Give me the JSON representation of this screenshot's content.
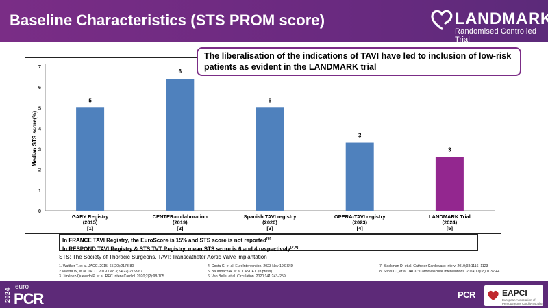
{
  "header": {
    "title": "Baseline Characteristics (STS PROM score)",
    "logo_name": "LANDMARK",
    "logo_subtitle": "Randomised Controlled Trial"
  },
  "callout": {
    "text": "The liberalisation of the indications of TAVI have led to inclusion of low-risk patients as evident in the LANDMARK trial"
  },
  "chart_data": {
    "type": "bar",
    "categories": [
      [
        "GARY Registry",
        "(2015)",
        "[1]"
      ],
      [
        "CENTER-collaboration",
        "(2019)",
        "[2]"
      ],
      [
        "Spanish TAVI registry",
        "(2020)",
        "[3]"
      ],
      [
        "OPERA-TAVI registry",
        "(2023)",
        "[4]"
      ],
      [
        "LANDMARK Trial",
        "(2024)",
        "[5]"
      ]
    ],
    "values": [
      5.0,
      6.4,
      5.0,
      3.3,
      2.6
    ],
    "data_labels": [
      "5",
      "6",
      "5",
      "3",
      "3"
    ],
    "bar_colors": [
      "#4f81bd",
      "#4f81bd",
      "#4f81bd",
      "#4f81bd",
      "#93278f"
    ],
    "ylabel": "Median STS score(%)",
    "ylim": [
      0,
      7
    ],
    "yticks": [
      "0",
      "1",
      "2",
      "3",
      "4",
      "5",
      "6",
      "7"
    ],
    "grid": false,
    "legend": "none"
  },
  "notes": {
    "line1": "In FRANCE TAVI Registry, the EuroScore is 15% and STS score is not reported",
    "line1_ref": "[6]",
    "line2": "In RESPOND TAVI Registry & STS TVT Registry, mean STS score is 6 and 4 respectively",
    "line2_ref": "[7,8]"
  },
  "abbreviations": "STS: The Society of Thoracic Surgeons, TAVI: Transcatheter Aortic Valve implantation",
  "references": {
    "col1": [
      "1. Walther T. et al. JACC. 2015; 65(20):2173-80",
      "2.Vlastra W, et al. JACC. 2019 Dec 3;74(22):2758-67",
      "3. Jiménez-Quevedo P. et al. REC Interv Cardiol. 2020;2(2):98-105"
    ],
    "col2": [
      "4. Costa G, et al. EuroIntervention. 2023 Nov 19:EIJ-D",
      "5. Baumbach A. et al. LANCET (in press)",
      "6. Van Belle, et al. Circulation. 2020;141:243–259"
    ],
    "col3": [
      "7. Blackman D. et al. Catheter Cardiovasc Interv. 2019;93:1116–1123",
      "8. Stinis CT, et al. JACC: Cardiovascular Interventions. 2024;17(08):1032-44"
    ]
  },
  "footer": {
    "year": "2024",
    "euro": "euro",
    "pcr": "PCR",
    "pcr_small": "PCR",
    "eapci_name": "EAPCI",
    "eapci_sub": "European Association of Percutaneous Cardiovascular Interventions"
  },
  "colors": {
    "header_purple": "#6a2a80",
    "bar_blue": "#4f81bd",
    "bar_landmark": "#93278f",
    "callout_border": "#7b2d86"
  }
}
